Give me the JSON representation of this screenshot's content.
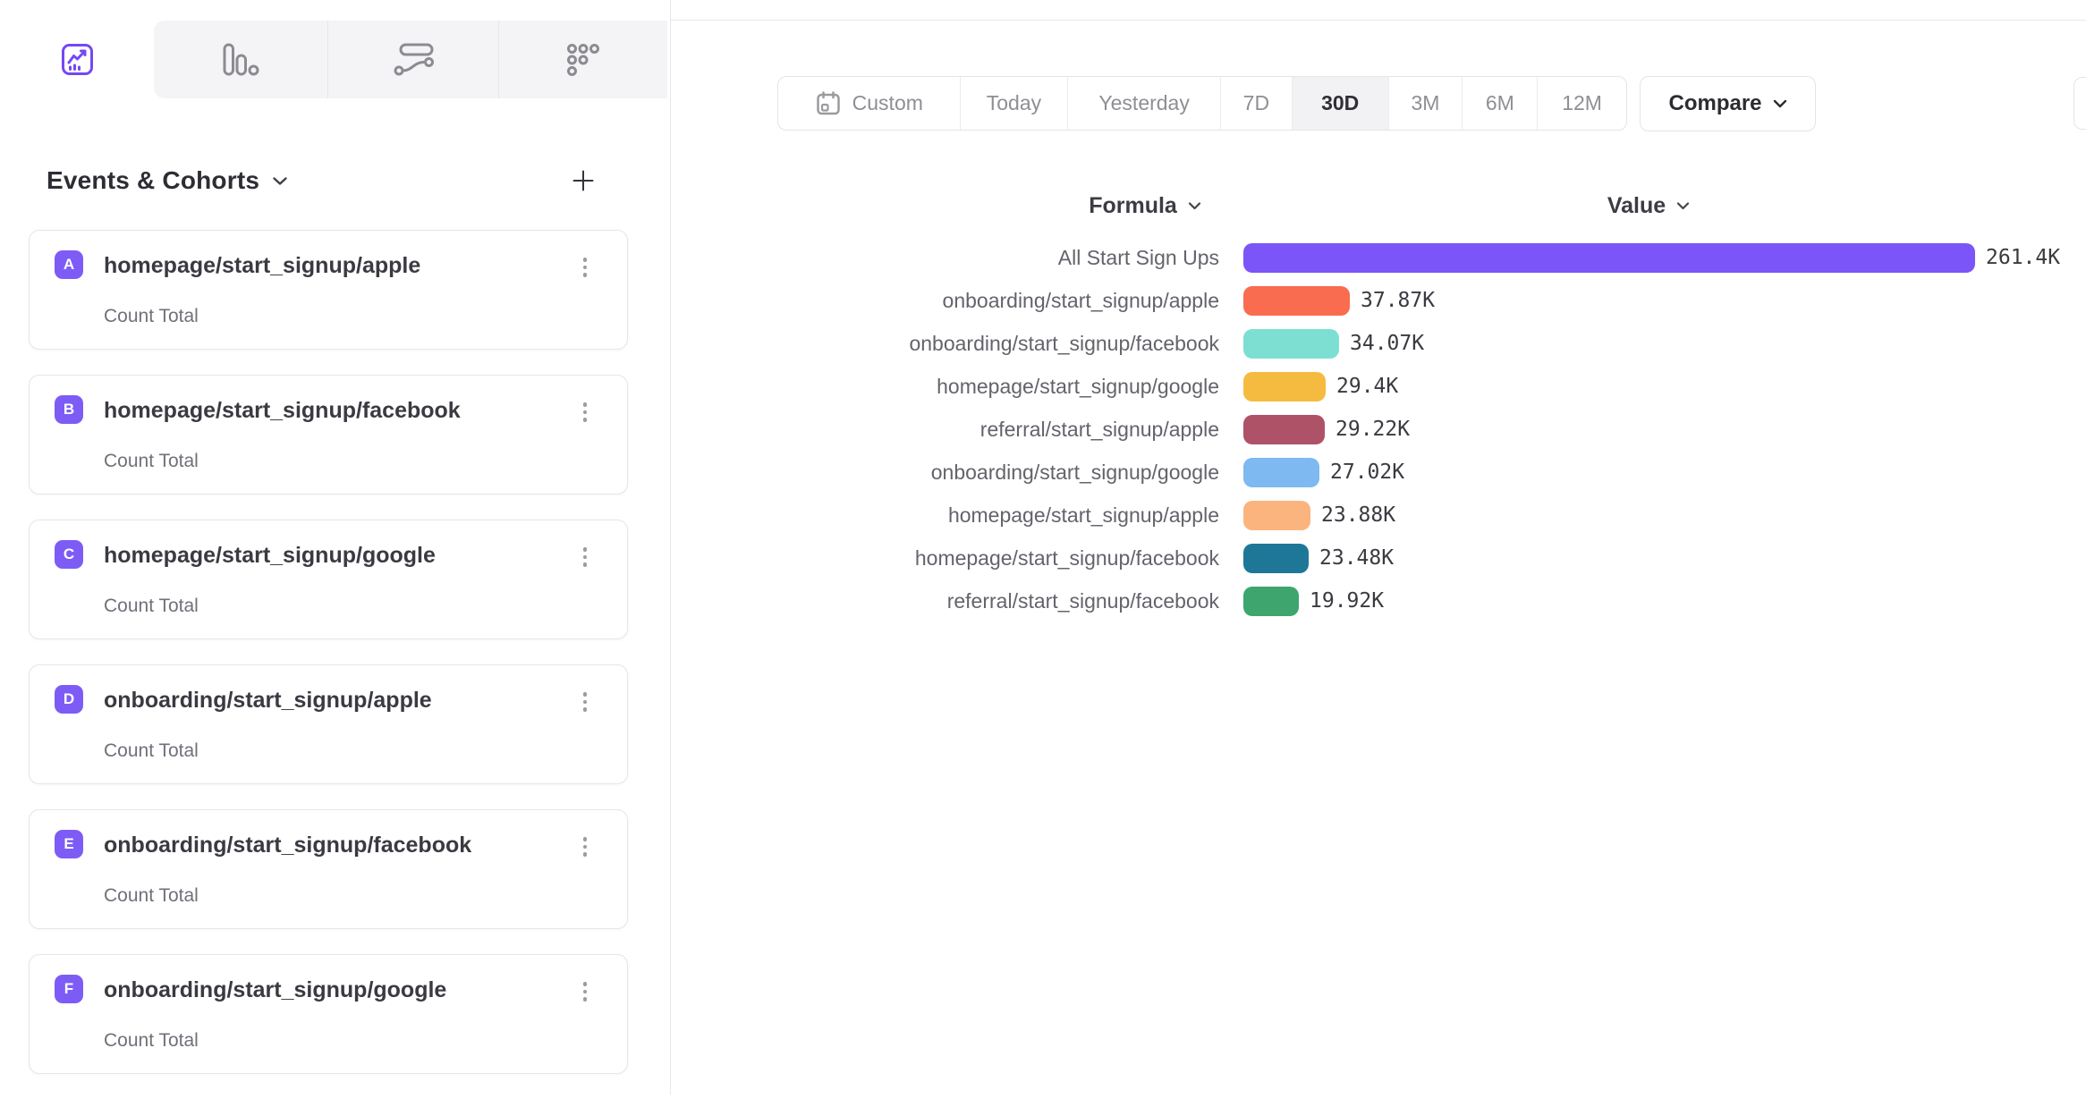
{
  "colors": {
    "accent_purple": "#7B55F7",
    "badge_purple": "#7D5CF6",
    "tab_icon_active": "#7448F4",
    "tab_icon_inactive": "#8B8B92",
    "border": "#E7E7EA"
  },
  "tabs": [
    {
      "icon": "insights-line-chart-icon",
      "active": true
    },
    {
      "icon": "bar-chart-icon",
      "active": false
    },
    {
      "icon": "flows-icon",
      "active": false
    },
    {
      "icon": "retention-grid-icon",
      "active": false
    }
  ],
  "sidebar": {
    "title": "Events & Cohorts",
    "items": [
      {
        "letter": "A",
        "name": "homepage/start_signup/apple",
        "metric": "Count Total"
      },
      {
        "letter": "B",
        "name": "homepage/start_signup/facebook",
        "metric": "Count Total"
      },
      {
        "letter": "C",
        "name": "homepage/start_signup/google",
        "metric": "Count Total"
      },
      {
        "letter": "D",
        "name": "onboarding/start_signup/apple",
        "metric": "Count Total"
      },
      {
        "letter": "E",
        "name": "onboarding/start_signup/facebook",
        "metric": "Count Total"
      },
      {
        "letter": "F",
        "name": "onboarding/start_signup/google",
        "metric": "Count Total"
      }
    ]
  },
  "toolbar": {
    "date_ranges": [
      {
        "label": "Custom",
        "icon": "calendar-icon",
        "active": false
      },
      {
        "label": "Today",
        "active": false
      },
      {
        "label": "Yesterday",
        "active": false
      },
      {
        "label": "7D",
        "active": false
      },
      {
        "label": "30D",
        "active": true
      },
      {
        "label": "3M",
        "active": false
      },
      {
        "label": "6M",
        "active": false
      },
      {
        "label": "12M",
        "active": false
      }
    ],
    "compare_label": "Compare"
  },
  "chart_data": {
    "type": "bar",
    "orientation": "horizontal",
    "formula_header": "Formula",
    "value_header": "Value",
    "max_value": 261400,
    "legend": false,
    "grid": false,
    "rows": [
      {
        "label": "All Start Sign Ups",
        "value": 261400,
        "value_label": "261.4K",
        "color": "#7B55F7"
      },
      {
        "label": "onboarding/start_signup/apple",
        "value": 37870,
        "value_label": "37.87K",
        "color": "#F96C4F"
      },
      {
        "label": "onboarding/start_signup/facebook",
        "value": 34070,
        "value_label": "34.07K",
        "color": "#7DDFD2"
      },
      {
        "label": "homepage/start_signup/google",
        "value": 29400,
        "value_label": "29.4K",
        "color": "#F5BB41"
      },
      {
        "label": "referral/start_signup/apple",
        "value": 29220,
        "value_label": "29.22K",
        "color": "#AE5268"
      },
      {
        "label": "onboarding/start_signup/google",
        "value": 27020,
        "value_label": "27.02K",
        "color": "#7EB9F1"
      },
      {
        "label": "homepage/start_signup/apple",
        "value": 23880,
        "value_label": "23.88K",
        "color": "#FBB47E"
      },
      {
        "label": "homepage/start_signup/facebook",
        "value": 23480,
        "value_label": "23.48K",
        "color": "#1E7796"
      },
      {
        "label": "referral/start_signup/facebook",
        "value": 19920,
        "value_label": "19.92K",
        "color": "#3EA56F"
      }
    ]
  }
}
